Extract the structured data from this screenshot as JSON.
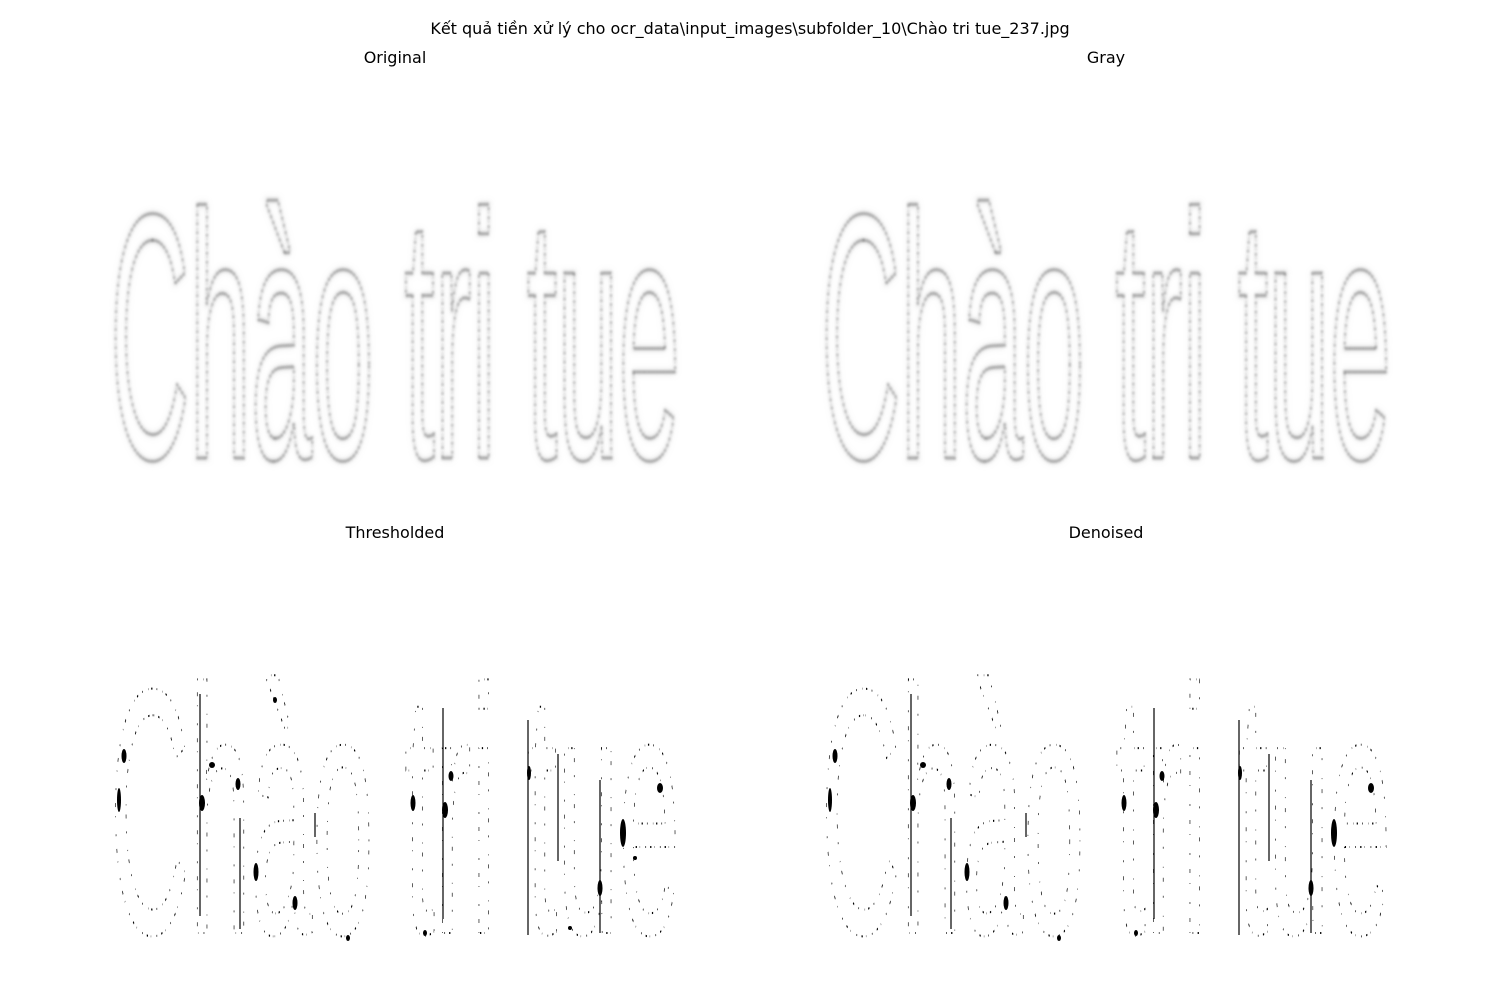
{
  "figure": {
    "suptitle": "Kết quả tiền xử lý cho ocr_data\\input_images\\subfolder_10\\Chào tri tue_237.jpg"
  },
  "panels": [
    {
      "id": "original",
      "title": "Original",
      "image_text": "Chào tri tue",
      "style": "soft-gray-strokes"
    },
    {
      "id": "gray",
      "title": "Gray",
      "image_text": "Chào tri tue",
      "style": "soft-gray-strokes"
    },
    {
      "id": "threshold",
      "title": "Thresholded",
      "image_text": "Chào tri tue",
      "style": "binary-fragments"
    },
    {
      "id": "denoised",
      "title": "Denoised",
      "image_text": "Chào tri tue",
      "style": "binary-fragments"
    }
  ],
  "colors": {
    "background": "#ffffff",
    "ink": "#000000",
    "soft_ink": "#4a4a4a"
  }
}
